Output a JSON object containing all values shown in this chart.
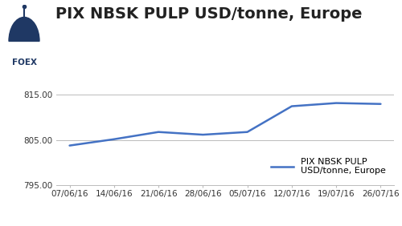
{
  "title": "PIX NBSK PULP USD/tonne, Europe",
  "x_labels": [
    "07/06/16",
    "14/06/16",
    "21/06/16",
    "28/06/16",
    "05/07/16",
    "12/07/16",
    "19/07/16",
    "26/07/16"
  ],
  "y_values": [
    803.8,
    805.2,
    806.8,
    806.2,
    806.8,
    812.5,
    813.2,
    813.0
  ],
  "line_color": "#4472C4",
  "ylim": [
    795,
    820
  ],
  "yticks": [
    795.0,
    805.0,
    815.0
  ],
  "grid_color": "#BBBBBB",
  "background_color": "#FFFFFF",
  "legend_label_line1": "PIX NBSK PULP",
  "legend_label_line2": "USD/tonne, Europe",
  "title_fontsize": 14,
  "tick_fontsize": 7.5,
  "legend_fontsize": 8,
  "foex_text": "FOEX",
  "foex_color": "#1F3864",
  "line_width": 1.8
}
